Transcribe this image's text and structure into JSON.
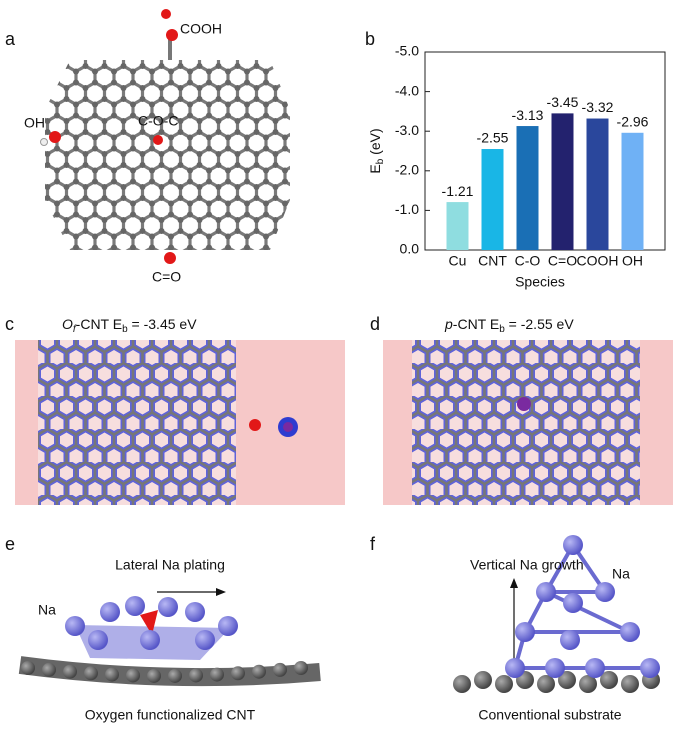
{
  "panel_labels": [
    "a",
    "b",
    "c",
    "d",
    "e",
    "f"
  ],
  "panel_a": {
    "annotations": [
      "COOH",
      "OH",
      "C-O-C",
      "C=O"
    ]
  },
  "panel_c": {
    "title_parts": [
      "O",
      "f",
      "-CNT E",
      "b",
      " = -3.45 eV"
    ]
  },
  "panel_d": {
    "title_parts": [
      "p",
      "-CNT E",
      "b",
      " = -2.55 eV"
    ]
  },
  "panel_e": {
    "arrow_label": "Lateral Na plating",
    "atom_label": "Na",
    "caption": "Oxygen functionalized CNT"
  },
  "panel_f": {
    "arrow_label": "Vertical Na growth",
    "atom_label": "Na",
    "caption": "Conventional substrate"
  },
  "chart_data": {
    "type": "bar",
    "categories": [
      "Cu",
      "CNT",
      "C-O",
      "C=O",
      "COOH",
      "OH"
    ],
    "values": [
      -1.21,
      -2.55,
      -3.13,
      -3.45,
      -3.32,
      -2.96
    ],
    "colors": [
      "#8fdde0",
      "#19b6e6",
      "#1a6fb5",
      "#23226e",
      "#2a479c",
      "#6fb1f5"
    ],
    "x_label": "Species",
    "y_label_parts": [
      "E",
      "b",
      " (eV)"
    ],
    "ylim": [
      0,
      -5
    ],
    "yticks": [
      {
        "value": 0,
        "label": "0.0"
      },
      {
        "value": -1,
        "label": "-1.0"
      },
      {
        "value": -2,
        "label": "-2.0"
      },
      {
        "value": -3,
        "label": "-3.0"
      },
      {
        "value": -4,
        "label": "-4.0"
      },
      {
        "value": -5,
        "label": "-5.0"
      }
    ],
    "grid": false
  }
}
